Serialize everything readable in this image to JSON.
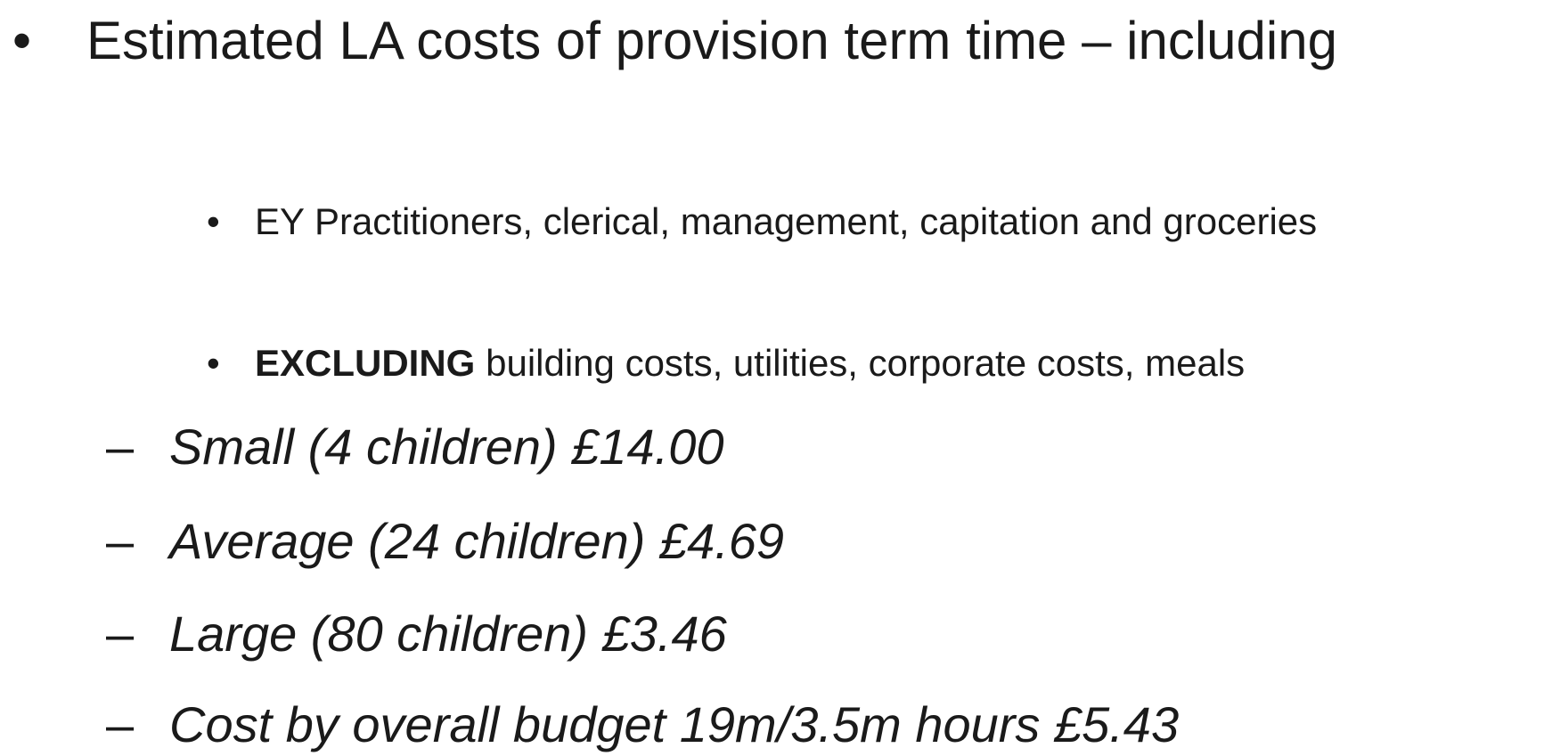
{
  "slide": {
    "bullet": {
      "text": "Estimated LA costs of provision term time – including",
      "sub_items": [
        {
          "text": "EY Practitioners, clerical, management, capitation and groceries"
        },
        {
          "bold": "EXCLUDING",
          "text": "building costs, utilities, corporate costs, meals"
        }
      ]
    },
    "dash_items": [
      "Small (4 children) £14.00",
      "Average (24 children) £4.69",
      "Large (80 children) £3.46",
      "Cost by overall budget 19m/3.5m hours £5.43"
    ]
  }
}
